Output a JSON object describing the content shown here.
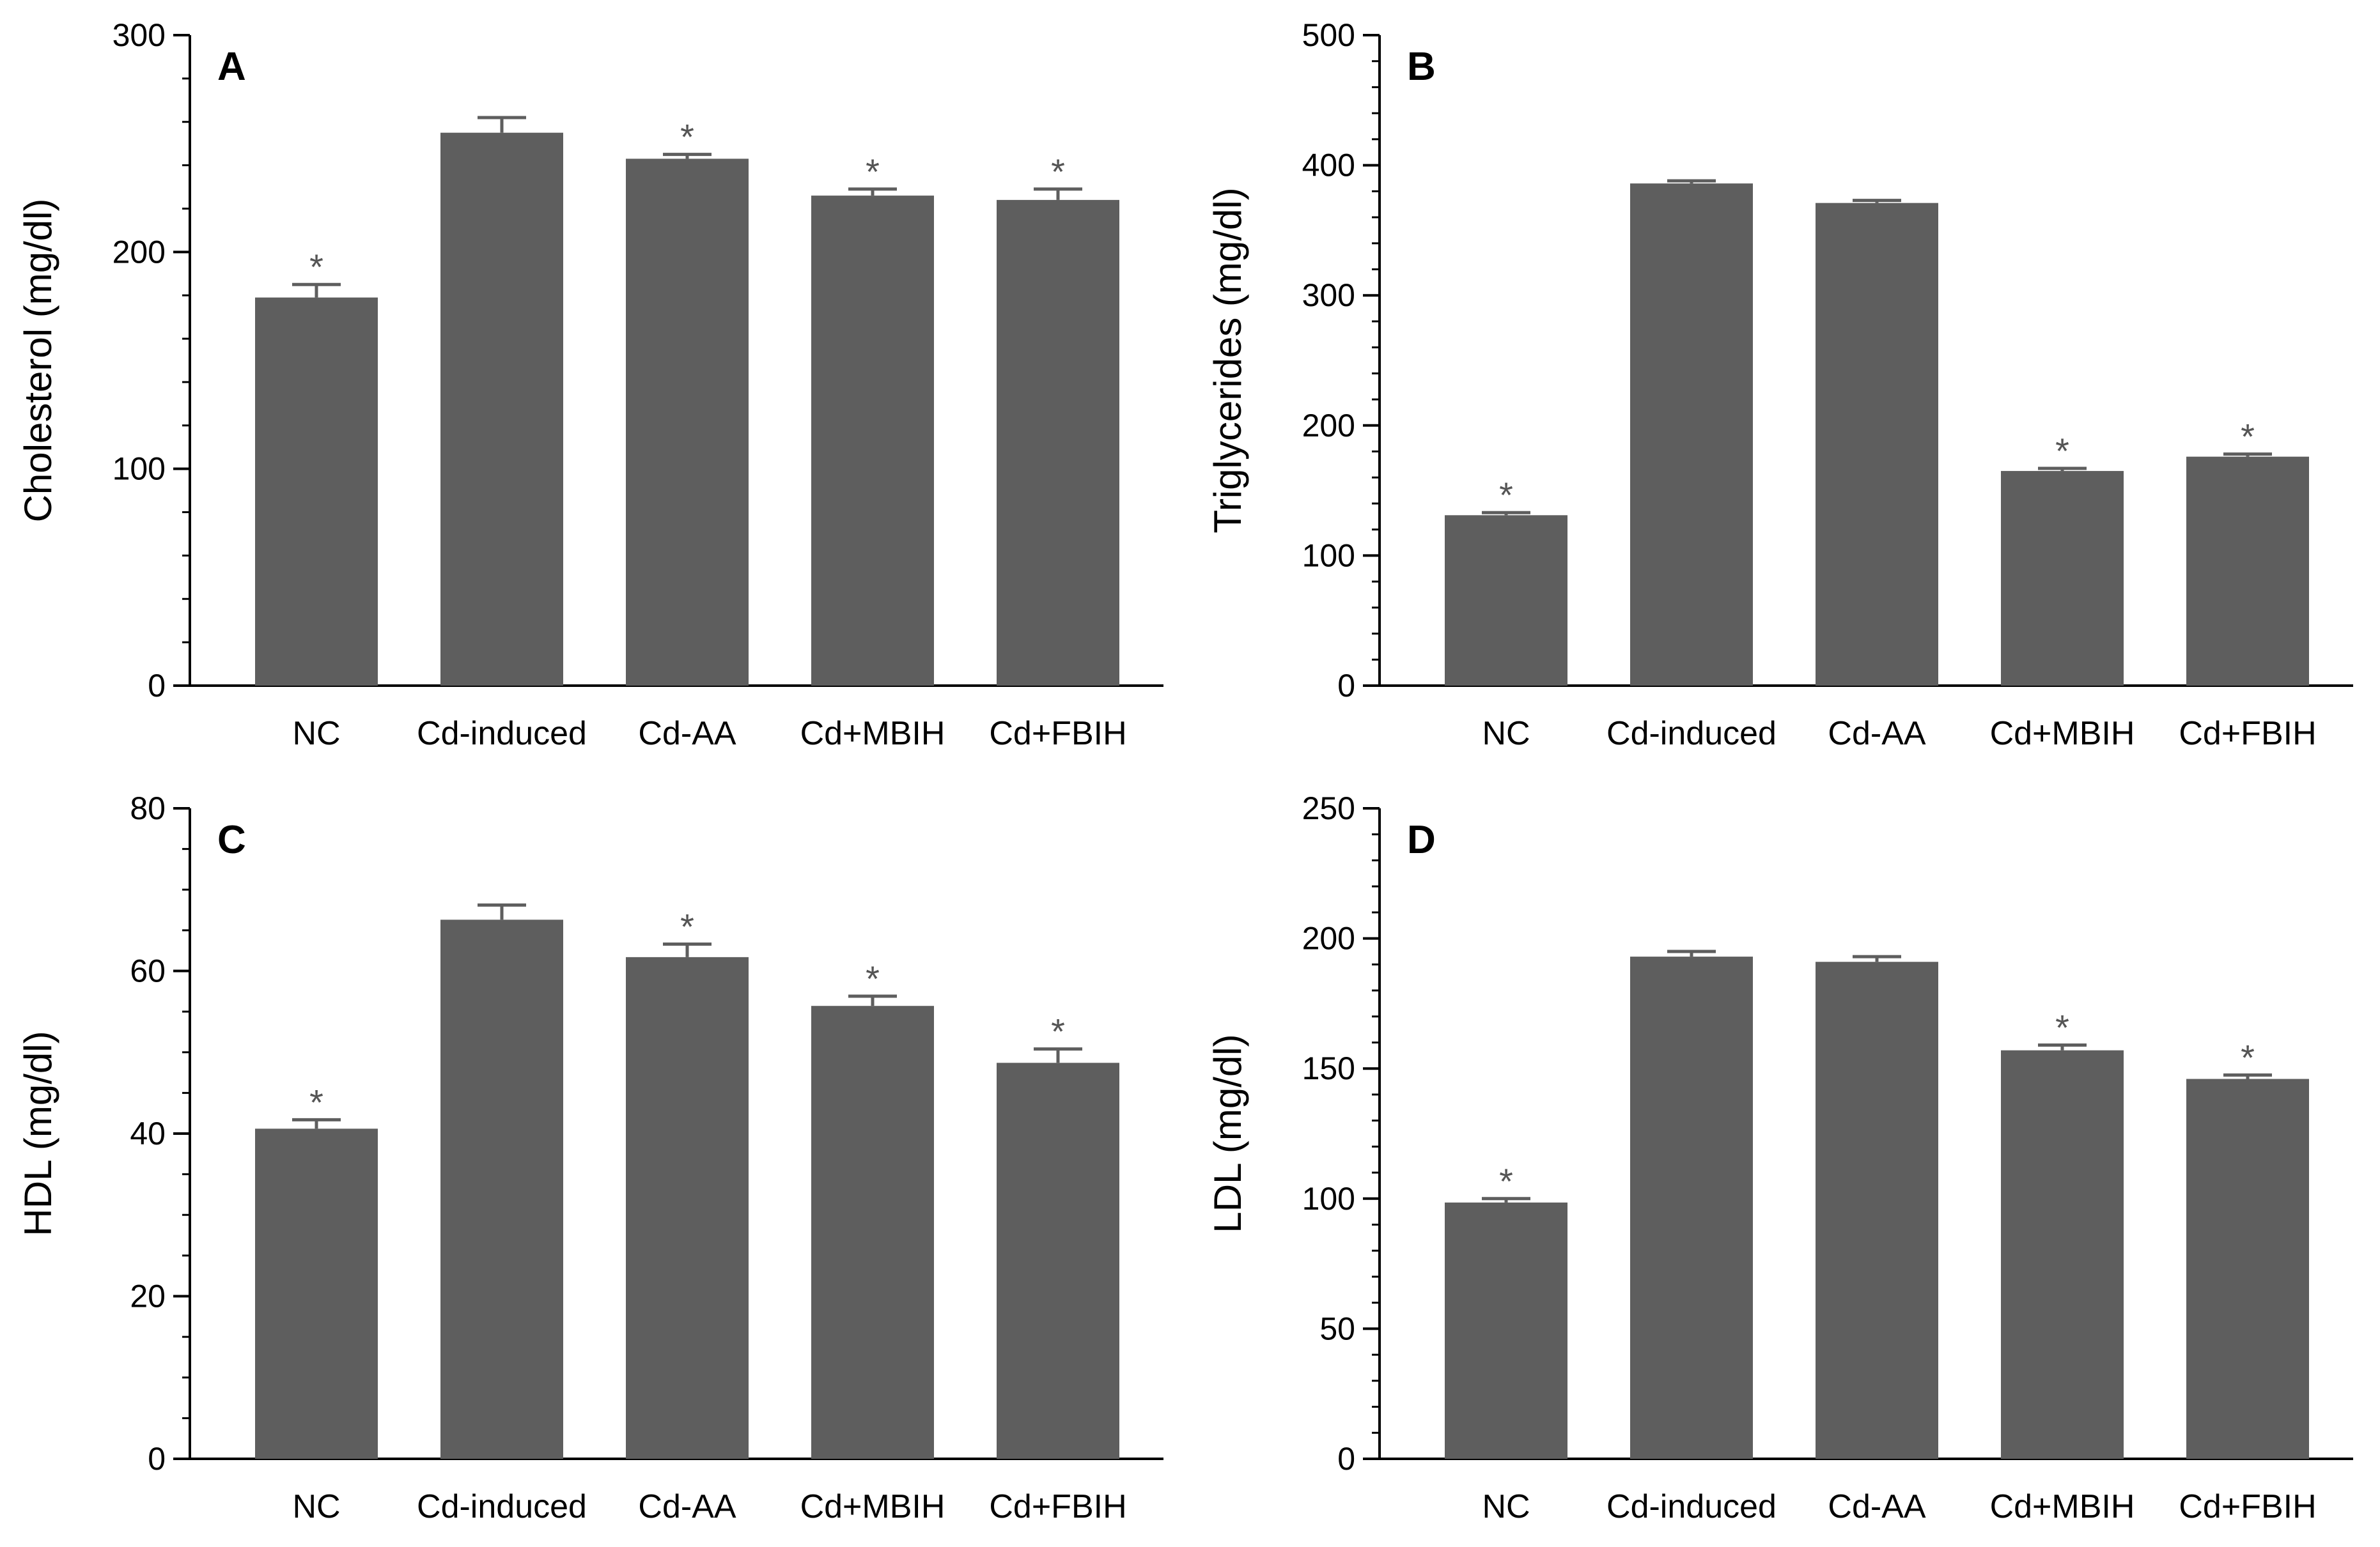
{
  "chart_data": [
    {
      "type": "bar",
      "panel": "A",
      "ylabel": "Cholesterol (mg/dl)",
      "categories": [
        "NC",
        "Cd-induced",
        "Cd-AA",
        "Cd+MBIH",
        "Cd+FBIH"
      ],
      "values": [
        179,
        255,
        243,
        226,
        224
      ],
      "errors": [
        6,
        7,
        2,
        3,
        5
      ],
      "significant": [
        true,
        false,
        true,
        true,
        true
      ],
      "ylim": [
        0,
        300
      ],
      "yticks": [
        0,
        100,
        200,
        300
      ],
      "minor_step": 20
    },
    {
      "type": "bar",
      "panel": "B",
      "ylabel": "Triglycerides (mg/dl)",
      "categories": [
        "NC",
        "Cd-induced",
        "Cd-AA",
        "Cd+MBIH",
        "Cd+FBIH"
      ],
      "values": [
        131,
        386,
        371,
        165,
        176
      ],
      "errors": [
        2,
        2,
        2,
        2,
        2
      ],
      "significant": [
        true,
        false,
        false,
        true,
        true
      ],
      "ylim": [
        0,
        500
      ],
      "yticks": [
        0,
        100,
        200,
        300,
        400,
        500
      ],
      "minor_step": 20
    },
    {
      "type": "bar",
      "panel": "C",
      "ylabel": "HDL (mg/dl)",
      "categories": [
        "NC",
        "Cd-induced",
        "Cd-AA",
        "Cd+MBIH",
        "Cd+FBIH"
      ],
      "values": [
        40.6,
        66.3,
        61.7,
        55.7,
        48.7
      ],
      "errors": [
        1.1,
        1.8,
        1.6,
        1.2,
        1.7
      ],
      "significant": [
        true,
        false,
        true,
        true,
        true
      ],
      "ylim": [
        0,
        80
      ],
      "yticks": [
        0,
        20,
        40,
        60,
        80
      ],
      "minor_step": 5
    },
    {
      "type": "bar",
      "panel": "D",
      "ylabel": "LDL (mg/dl)",
      "categories": [
        "NC",
        "Cd-induced",
        "Cd-AA",
        "Cd+MBIH",
        "Cd+FBIH"
      ],
      "values": [
        98.5,
        193,
        191,
        157,
        146
      ],
      "errors": [
        1.5,
        2,
        2,
        2,
        1.5
      ],
      "significant": [
        true,
        false,
        false,
        true,
        true
      ],
      "ylim": [
        0,
        250
      ],
      "yticks": [
        0,
        50,
        100,
        150,
        200,
        250
      ],
      "minor_step": 10
    }
  ],
  "significance_marker": "*",
  "colors": {
    "bar": "#5e5e5e",
    "axis": "#000000",
    "marker": "#555555"
  }
}
